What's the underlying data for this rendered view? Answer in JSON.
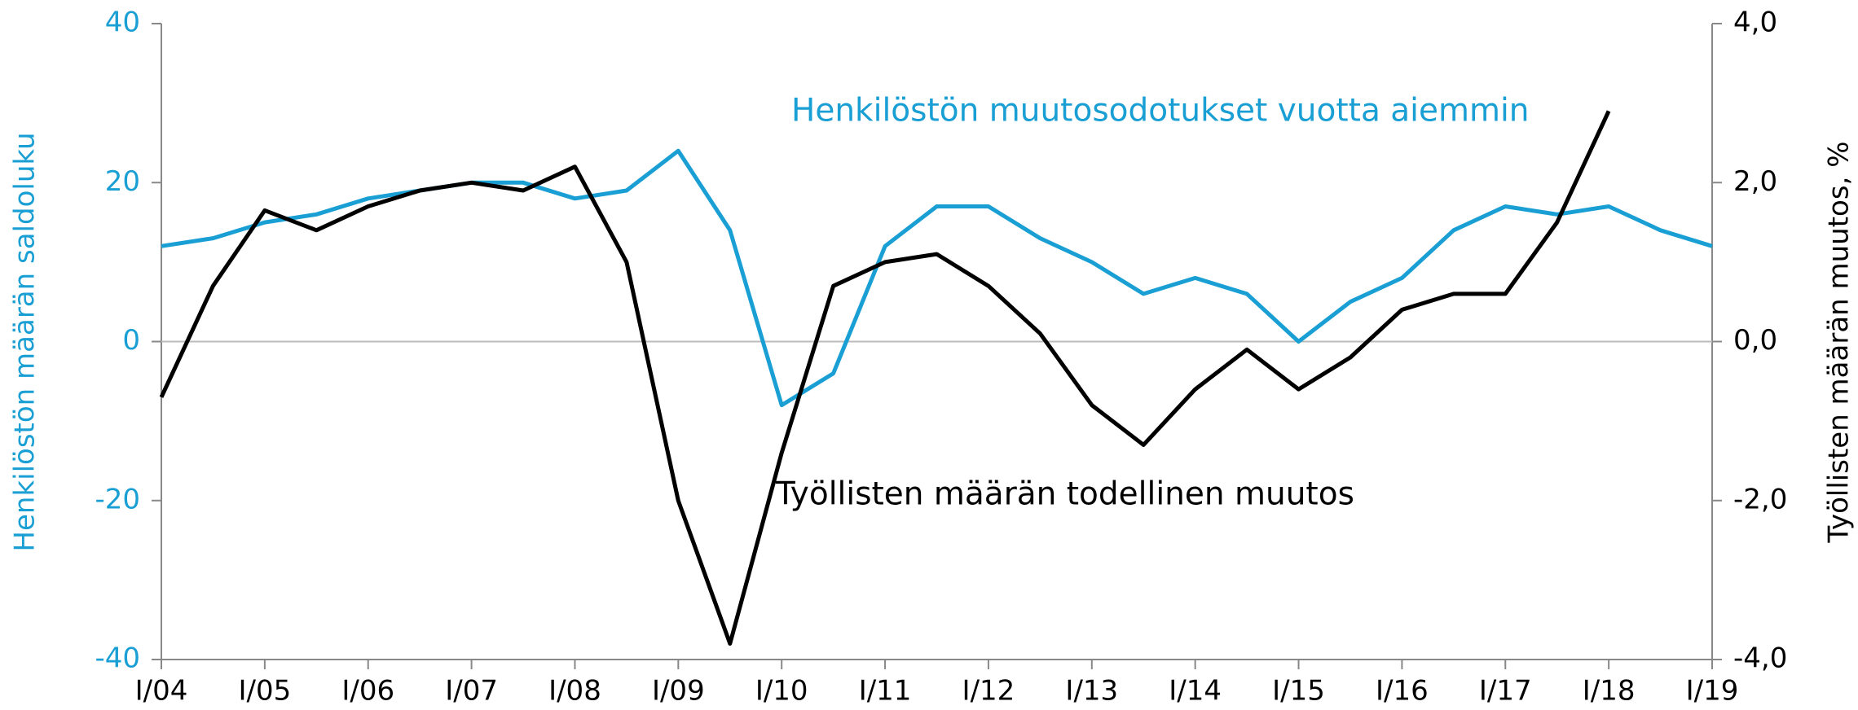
{
  "chart_data": {
    "type": "line",
    "categories": [
      "I/04",
      null,
      "I/05",
      null,
      "I/06",
      null,
      "I/07",
      null,
      "I/08",
      null,
      "I/09",
      null,
      "I/10",
      null,
      "I/11",
      null,
      "I/12",
      null,
      "I/13",
      null,
      "I/14",
      null,
      "I/15",
      null,
      "I/16",
      null,
      "I/17",
      null,
      "I/18",
      null,
      "I/19"
    ],
    "series": [
      {
        "name": "Henkilöstön muutosodotukset vuotta aiemmin",
        "color": "#1a9fd4",
        "axis": "y",
        "values": [
          12,
          13,
          15,
          16,
          18,
          19,
          20,
          20,
          18,
          19,
          24,
          14,
          -8,
          -4,
          12,
          17,
          17,
          13,
          10,
          6,
          8,
          6,
          0,
          5,
          8,
          14,
          17,
          16,
          17,
          14,
          12
        ]
      },
      {
        "name": "Työllisten määrän todellinen muutos",
        "color": "#000000",
        "axis": "y2",
        "values": [
          -0.7,
          0.7,
          1.65,
          1.4,
          1.7,
          1.9,
          2.0,
          1.9,
          2.2,
          1.0,
          -2.0,
          -3.8,
          -1.4,
          0.7,
          1.0,
          1.1,
          0.7,
          0.1,
          -0.8,
          -1.3,
          -0.6,
          -0.1,
          -0.6,
          -0.2,
          0.4,
          0.6,
          0.6,
          1.5,
          2.9,
          null,
          null
        ]
      }
    ],
    "ylabel": "Henkilöstön määrän saldoluku",
    "y2label": "Työllisten määrän muutos, %",
    "ylim": [
      -40,
      40
    ],
    "yticks": [
      -40,
      -20,
      0,
      20,
      40
    ],
    "y2lim": [
      -4,
      4
    ],
    "y2ticks": [
      {
        "value": -4,
        "label": "-4,0"
      },
      {
        "value": -2,
        "label": "-2,0"
      },
      {
        "value": 0,
        "label": "0,0"
      },
      {
        "value": 2,
        "label": "2,0"
      },
      {
        "value": 4,
        "label": "4,0"
      }
    ]
  }
}
